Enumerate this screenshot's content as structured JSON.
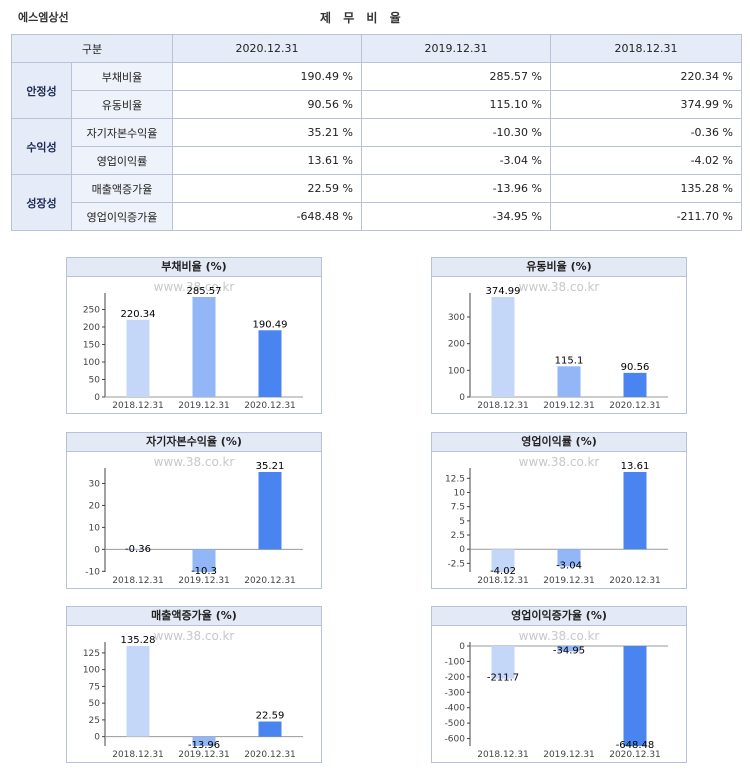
{
  "header": {
    "company": "에스엠상선",
    "title": "제 무 비 율"
  },
  "table": {
    "headers": [
      "구분",
      "2020.12.31",
      "2019.12.31",
      "2018.12.31"
    ],
    "groups": [
      {
        "label": "안정성",
        "rows": [
          {
            "item": "부채비율",
            "values": [
              "190.49 %",
              "285.57 %",
              "220.34 %"
            ]
          },
          {
            "item": "유동비율",
            "values": [
              "90.56 %",
              "115.10 %",
              "374.99 %"
            ]
          }
        ]
      },
      {
        "label": "수익성",
        "rows": [
          {
            "item": "자기자본수익율",
            "values": [
              "35.21 %",
              "-10.30 %",
              "-0.36 %"
            ]
          },
          {
            "item": "영업이익률",
            "values": [
              "13.61 %",
              "-3.04 %",
              "-4.02 %"
            ]
          }
        ]
      },
      {
        "label": "성장성",
        "rows": [
          {
            "item": "매출액증가율",
            "values": [
              "22.59 %",
              "-13.96 %",
              "135.28 %"
            ]
          },
          {
            "item": "영업이익증가율",
            "values": [
              "-648.48 %",
              "-34.95 %",
              "-211.70 %"
            ]
          }
        ]
      }
    ]
  },
  "colors": [
    "#c4d7f8",
    "#92b6f6",
    "#4a84f0"
  ],
  "chart_data": [
    {
      "type": "bar",
      "title": "부채비율 (%)",
      "watermark": "www.38.co.kr",
      "categories": [
        "2018.12.31",
        "2019.12.31",
        "2020.12.31"
      ],
      "values": [
        220.34,
        285.57,
        190.49
      ],
      "value_labels": [
        "220.34",
        "285.57",
        "190.49"
      ],
      "ylim": [
        0,
        285.57
      ],
      "yticks": [
        0,
        50,
        100,
        150,
        200,
        250
      ],
      "ytick_labels": [
        "0",
        "50",
        "100",
        "150",
        "200",
        "250"
      ]
    },
    {
      "type": "bar",
      "title": "유동비율 (%)",
      "watermark": "www.38.co.kr",
      "categories": [
        "2018.12.31",
        "2019.12.31",
        "2020.12.31"
      ],
      "values": [
        374.99,
        115.1,
        90.56
      ],
      "value_labels": [
        "374.99",
        "115.1",
        "90.56"
      ],
      "ylim": [
        0,
        374.99
      ],
      "yticks": [
        0,
        100,
        200,
        300
      ],
      "ytick_labels": [
        "0",
        "100",
        "200",
        "300"
      ]
    },
    {
      "type": "bar",
      "title": "자기자본수익율 (%)",
      "watermark": "www.38.co.kr",
      "categories": [
        "2018.12.31",
        "2019.12.31",
        "2020.12.31"
      ],
      "values": [
        -0.36,
        -10.3,
        35.21
      ],
      "value_labels": [
        "-0.36",
        "-10.3",
        "35.21"
      ],
      "ylim": [
        -10.3,
        35.21
      ],
      "yticks": [
        -10,
        0,
        10,
        20,
        30
      ],
      "ytick_labels": [
        "-10",
        "0",
        "10",
        "20",
        "30"
      ]
    },
    {
      "type": "bar",
      "title": "영업이익률 (%)",
      "watermark": "www.38.co.kr",
      "categories": [
        "2018.12.31",
        "2019.12.31",
        "2020.12.31"
      ],
      "values": [
        -4.02,
        -3.04,
        13.61
      ],
      "value_labels": [
        "-4.02",
        "-3.04",
        "13.61"
      ],
      "ylim": [
        -4.02,
        13.61
      ],
      "yticks": [
        -2.5,
        0,
        2.5,
        5,
        7.5,
        10,
        12.5
      ],
      "ytick_labels": [
        "-2.5",
        "0",
        "2.5",
        "5",
        "7.5",
        "10",
        "12.5"
      ]
    },
    {
      "type": "bar",
      "title": "매출액증가율 (%)",
      "watermark": "www.38.co.kr",
      "categories": [
        "2018.12.31",
        "2019.12.31",
        "2020.12.31"
      ],
      "values": [
        135.28,
        -13.96,
        22.59
      ],
      "value_labels": [
        "135.28",
        "-13.96",
        "22.59"
      ],
      "ylim": [
        -13.96,
        135.28
      ],
      "yticks": [
        0,
        25,
        50,
        75,
        100,
        125
      ],
      "ytick_labels": [
        "0",
        "25",
        "50",
        "75",
        "100",
        "125"
      ]
    },
    {
      "type": "bar",
      "title": "영업이익증가율 (%)",
      "watermark": "www.38.co.kr",
      "categories": [
        "2018.12.31",
        "2019.12.31",
        "2020.12.31"
      ],
      "values": [
        -211.7,
        -34.95,
        -648.48
      ],
      "value_labels": [
        "-211.7",
        "-34.95",
        "-648.48"
      ],
      "ylim": [
        -648.48,
        0
      ],
      "yticks": [
        0,
        -100,
        -200,
        -300,
        -400,
        -500,
        -600
      ],
      "ytick_labels": [
        "0",
        "-100",
        "-200",
        "-300",
        "-400",
        "-500",
        "-600"
      ]
    }
  ]
}
